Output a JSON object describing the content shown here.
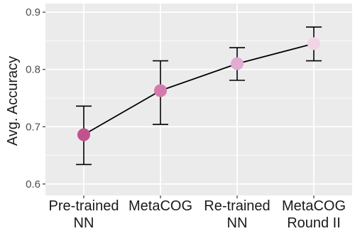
{
  "chart_data": {
    "type": "line",
    "categories": [
      [
        "Pre-trained",
        "NN"
      ],
      [
        "MetaCOG"
      ],
      [
        "Re-trained",
        "NN"
      ],
      [
        "MetaCOG",
        "Round II"
      ]
    ],
    "values": [
      0.686,
      0.763,
      0.81,
      0.845
    ],
    "error_low": [
      0.634,
      0.704,
      0.781,
      0.815
    ],
    "error_high": [
      0.736,
      0.815,
      0.838,
      0.874
    ],
    "point_colors": [
      "#c2528e",
      "#d47aac",
      "#e2abd0",
      "#f1d5e6"
    ],
    "title": "",
    "xlabel": "",
    "ylabel": "Avg. Accuracy",
    "ylim": [
      0.58,
      0.915
    ],
    "yticks": [
      0.6,
      0.7,
      0.8,
      0.9
    ],
    "ytick_labels": [
      "0.6",
      "0.7",
      "0.8",
      "0.9"
    ],
    "grid": true,
    "legend": "none"
  },
  "style": {
    "panel_background": "#ebebeb",
    "grid_color": "#ffffff",
    "line_color": "#000000"
  }
}
